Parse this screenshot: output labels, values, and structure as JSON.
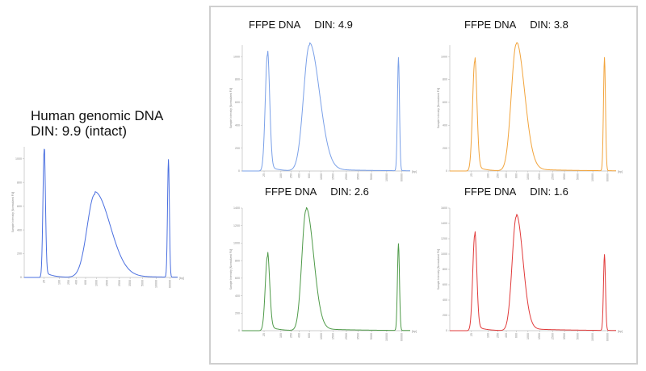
{
  "colors": {
    "frame": "#cfcfcf",
    "axis": "#bdbdbd",
    "text": "#111111"
  },
  "chart_data": [
    {
      "type": "line",
      "title_line1": "Human genomic DNA",
      "title_line2": "DIN: 9.9  (intact)",
      "color": "#4a6fe0",
      "ylabel": "Sample Intensity [Normalized FU]",
      "xlabel": "[bp]",
      "ylim": [
        0,
        1100
      ],
      "y_ticks": [
        "0",
        "200",
        "400",
        "600",
        "800",
        "1000"
      ],
      "x_ticks": [
        "25",
        "100",
        "250",
        "400",
        "600",
        "1000",
        "1500",
        "2500",
        "3500",
        "5000",
        "10000",
        "60000"
      ],
      "peaks": [
        {
          "label": "lower marker",
          "position": 0.13,
          "height": 1080,
          "width": 0.008
        },
        {
          "label": "genomic DNA",
          "position": 0.46,
          "height": 700,
          "width_left": 0.05,
          "width_right": 0.1
        },
        {
          "label": "upper marker",
          "position": 0.94,
          "height": 990,
          "width": 0.006
        }
      ]
    },
    {
      "type": "line",
      "title": "FFPE DNA",
      "din_label": "DIN: 4.9",
      "color": "#7aa0e8",
      "ylabel": "Sample Intensity [Normalized FU]",
      "xlabel": "[bp]",
      "ylim": [
        0,
        1100
      ],
      "y_ticks": [
        "0",
        "200",
        "400",
        "600",
        "800",
        "1000"
      ],
      "x_ticks": [
        "25",
        "100",
        "250",
        "400",
        "600",
        "1000",
        "1500",
        "2500",
        "3500",
        "5000",
        "10000",
        "60000"
      ],
      "peaks": [
        {
          "label": "lower marker",
          "position": 0.15,
          "height": 1020,
          "width": 0.013
        },
        {
          "label": "sample",
          "position": 0.4,
          "height": 1100,
          "width_left": 0.035,
          "width_right": 0.06
        },
        {
          "label": "upper marker",
          "position": 0.93,
          "height": 990,
          "width": 0.006
        }
      ]
    },
    {
      "type": "line",
      "title": "FFPE DNA",
      "din_label": "DIN: 3.8",
      "color": "#f2a43c",
      "ylabel": "Sample Intensity [Normalized FU]",
      "xlabel": "[bp]",
      "ylim": [
        0,
        1100
      ],
      "y_ticks": [
        "0",
        "200",
        "400",
        "600",
        "800",
        "1000"
      ],
      "x_ticks": [
        "25",
        "100",
        "250",
        "400",
        "600",
        "1000",
        "1500",
        "2500",
        "3500",
        "5000",
        "10000",
        "60000"
      ],
      "peaks": [
        {
          "label": "lower marker",
          "position": 0.15,
          "height": 960,
          "width": 0.013
        },
        {
          "label": "sample",
          "position": 0.4,
          "height": 1110,
          "width_left": 0.03,
          "width_right": 0.05
        },
        {
          "label": "upper marker",
          "position": 0.93,
          "height": 990,
          "width": 0.006
        }
      ]
    },
    {
      "type": "line",
      "title": "FFPE DNA",
      "din_label": "DIN: 2.6",
      "color": "#4e9a48",
      "ylabel": "Sample Intensity [Normalized FU]",
      "xlabel": "[bp]",
      "ylim": [
        0,
        1400
      ],
      "y_ticks": [
        "0",
        "200",
        "400",
        "600",
        "800",
        "1000",
        "1200",
        "1400"
      ],
      "x_ticks": [
        "25",
        "100",
        "250",
        "400",
        "600",
        "1000",
        "1500",
        "2500",
        "3500",
        "5000",
        "10000",
        "60000"
      ],
      "peaks": [
        {
          "label": "lower marker",
          "position": 0.15,
          "height": 850,
          "width": 0.013
        },
        {
          "label": "sample",
          "position": 0.38,
          "height": 1380,
          "width_left": 0.025,
          "width_right": 0.045
        },
        {
          "label": "upper marker",
          "position": 0.93,
          "height": 990,
          "width": 0.006
        }
      ]
    },
    {
      "type": "line",
      "title": "FFPE DNA",
      "din_label": "DIN: 1.6",
      "color": "#e13a3a",
      "ylabel": "Sample Intensity [Normalized FU]",
      "xlabel": "[bp]",
      "ylim": [
        0,
        1600
      ],
      "y_ticks": [
        "0",
        "200",
        "400",
        "600",
        "800",
        "1000",
        "1200",
        "1400",
        "1600"
      ],
      "x_ticks": [
        "25",
        "100",
        "250",
        "400",
        "600",
        "1000",
        "1500",
        "2500",
        "3500",
        "5000",
        "10000",
        "60000"
      ],
      "peaks": [
        {
          "label": "lower marker",
          "position": 0.15,
          "height": 1250,
          "width": 0.012
        },
        {
          "label": "sample",
          "position": 0.4,
          "height": 1490,
          "width_left": 0.025,
          "width_right": 0.04
        },
        {
          "label": "upper marker",
          "position": 0.93,
          "height": 990,
          "width": 0.006
        }
      ]
    }
  ]
}
